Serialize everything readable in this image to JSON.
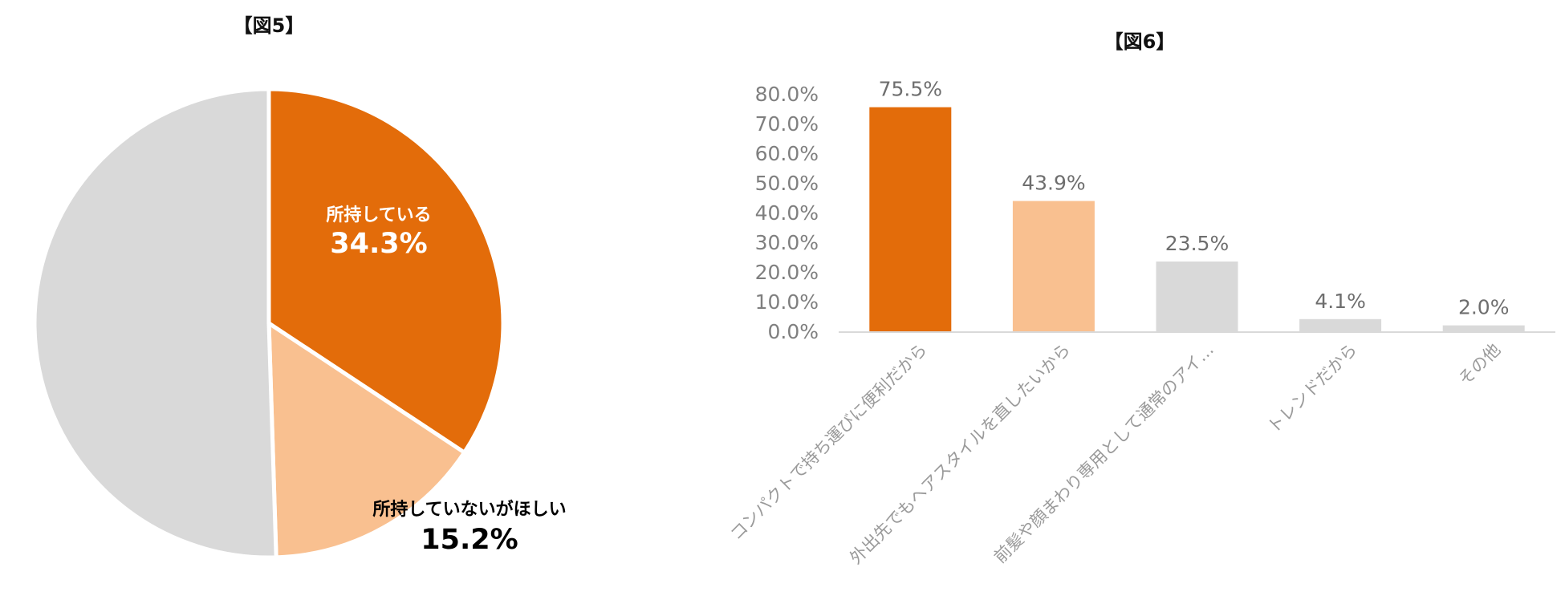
{
  "chart_data": [
    {
      "type": "pie",
      "title": "【図5】",
      "slices": [
        {
          "label": "所持している",
          "value_label": "34.3%",
          "value": 34.3,
          "color": "#e36c0a"
        },
        {
          "label": "所持していないがほしい",
          "value_label": "15.2%",
          "value": 15.2,
          "color": "#f9c090"
        },
        {
          "label": "",
          "value_label": "",
          "value": 50.5,
          "color": "#d9d9d9"
        }
      ]
    },
    {
      "type": "bar",
      "title": "【図6】",
      "categories": [
        "コンパクトで持ち運びに便利だから",
        "外出先でもヘアスタイルを直したいから",
        "前髪や顔まわり専用として通常のアイ…",
        "トレンドだから",
        "その他"
      ],
      "values": [
        75.5,
        43.9,
        23.5,
        4.1,
        2.0
      ],
      "value_labels": [
        "75.5%",
        "43.9%",
        "23.5%",
        "4.1%",
        "2.0%"
      ],
      "colors": [
        "#e36c0a",
        "#f9c090",
        "#d9d9d9",
        "#d9d9d9",
        "#d9d9d9"
      ],
      "yticks": [
        "0.0%",
        "10.0%",
        "20.0%",
        "30.0%",
        "40.0%",
        "50.0%",
        "60.0%",
        "70.0%",
        "80.0%"
      ],
      "ylim": [
        0,
        80
      ],
      "xlabel": "",
      "ylabel": ""
    }
  ]
}
